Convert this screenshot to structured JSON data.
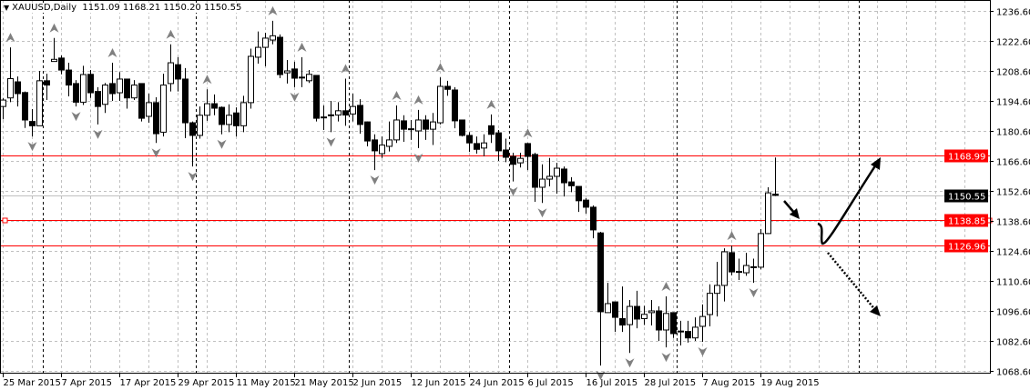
{
  "header": {
    "symbol": "XAUUSD,Daily",
    "ohlc": "1151.09 1168.21 1150.20 1150.55",
    "menu_icon": "triangle-down-icon"
  },
  "colors": {
    "background": "#ffffff",
    "candle_outline": "#000000",
    "bull_body": "#ffffff",
    "bear_body": "#000000",
    "grid": "#c0c0c0",
    "level_line": "#ff0000",
    "bid_line": "#c0c0c0",
    "label_red_bg": "#ff0000",
    "label_bid_bg": "#000000",
    "fractal": "#808080"
  },
  "chart_data": {
    "type": "candlestick",
    "symbol": "XAUUSD",
    "timeframe": "Daily",
    "ylim": [
      1065.0,
      1243.0
    ],
    "grid": true,
    "y_ticks": [
      "1236.60",
      "1222.60",
      "1208.60",
      "1194.60",
      "1180.60",
      "1166.60",
      "1152.60",
      "1138.60",
      "1124.60",
      "1110.60",
      "1096.60",
      "1082.60",
      "1068.60"
    ],
    "x_ticks": [
      {
        "label": "25 Mar 2015",
        "index": 0
      },
      {
        "label": "7 Apr 2015",
        "index": 8
      },
      {
        "label": "17 Apr 2015",
        "index": 16
      },
      {
        "label": "29 Apr 2015",
        "index": 24
      },
      {
        "label": "11 May 2015",
        "index": 32
      },
      {
        "label": "21 May 2015",
        "index": 40
      },
      {
        "label": "2 Jun 2015",
        "index": 48
      },
      {
        "label": "12 Jun 2015",
        "index": 56
      },
      {
        "label": "24 Jun 2015",
        "index": 64
      },
      {
        "label": "6 Jul 2015",
        "index": 72
      },
      {
        "label": "16 Jul 2015",
        "index": 80
      },
      {
        "label": "28 Jul 2015",
        "index": 88
      },
      {
        "label": "7 Aug 2015",
        "index": 96
      },
      {
        "label": "19 Aug 2015",
        "index": 104
      }
    ],
    "month_separators": [
      5,
      26,
      47,
      69,
      92
    ],
    "candles_ohlc": [
      [
        1192,
        1196,
        1186,
        1195
      ],
      [
        1196,
        1219.6,
        1194,
        1205
      ],
      [
        1203.5,
        1206,
        1192,
        1198
      ],
      [
        1198.5,
        1199,
        1182,
        1185.7
      ],
      [
        1185,
        1190.8,
        1178,
        1183
      ],
      [
        1183,
        1208.6,
        1183,
        1204
      ],
      [
        1204,
        1207.3,
        1195,
        1202
      ],
      [
        1213,
        1224,
        1213,
        1214
      ],
      [
        1214.6,
        1215.8,
        1207,
        1209
      ],
      [
        1209,
        1212.4,
        1196.7,
        1202
      ],
      [
        1202.7,
        1204.3,
        1192,
        1194
      ],
      [
        1194,
        1211,
        1192.7,
        1206.9
      ],
      [
        1207,
        1209,
        1196,
        1198.4
      ],
      [
        1199,
        1201,
        1183.6,
        1192
      ],
      [
        1193,
        1203,
        1189,
        1202
      ],
      [
        1202.7,
        1212.4,
        1194.6,
        1198
      ],
      [
        1198.4,
        1208,
        1194.6,
        1204.8
      ],
      [
        1204.8,
        1205,
        1191,
        1196
      ],
      [
        1196,
        1204.3,
        1195,
        1202
      ],
      [
        1202.7,
        1202.7,
        1185,
        1186.5
      ],
      [
        1187.4,
        1198,
        1184.4,
        1193.8
      ],
      [
        1193.8,
        1196.3,
        1175,
        1179.3
      ],
      [
        1180,
        1207.3,
        1178,
        1202
      ],
      [
        1202.7,
        1221,
        1199,
        1212.4
      ],
      [
        1211.5,
        1215,
        1199,
        1204.8
      ],
      [
        1204.8,
        1209.9,
        1177.2,
        1184.4
      ],
      [
        1184.4,
        1185,
        1164,
        1178.5
      ],
      [
        1178.5,
        1192,
        1177,
        1187.9
      ],
      [
        1187.9,
        1200,
        1185.3,
        1193.3
      ],
      [
        1193.3,
        1197.6,
        1187.9,
        1191.2
      ],
      [
        1191.6,
        1192,
        1179,
        1183.6
      ],
      [
        1183.6,
        1193,
        1180,
        1187.9
      ],
      [
        1189,
        1191.6,
        1178,
        1183
      ],
      [
        1183,
        1197,
        1180,
        1193.8
      ],
      [
        1193.8,
        1219,
        1191,
        1215.4
      ],
      [
        1215,
        1227,
        1212,
        1219.6
      ],
      [
        1219.6,
        1226.4,
        1210.7,
        1223.9
      ],
      [
        1223,
        1232,
        1221,
        1225
      ],
      [
        1224.3,
        1225.6,
        1205.2,
        1206.9
      ],
      [
        1207.7,
        1213.7,
        1202.7,
        1208.6
      ],
      [
        1209.5,
        1212.9,
        1201,
        1205.2
      ],
      [
        1205.6,
        1215,
        1201,
        1205.7
      ],
      [
        1204,
        1209,
        1203,
        1207
      ],
      [
        1206.5,
        1206.5,
        1185,
        1186.5
      ],
      [
        1187,
        1192.5,
        1181,
        1187.1
      ],
      [
        1188,
        1194.6,
        1180,
        1188.1
      ],
      [
        1188,
        1194,
        1185,
        1190
      ],
      [
        1190,
        1205,
        1183,
        1188
      ],
      [
        1188.5,
        1198,
        1185,
        1192
      ],
      [
        1192.5,
        1195.4,
        1179.3,
        1183.6
      ],
      [
        1184.8,
        1185,
        1173.4,
        1175.9
      ],
      [
        1176.4,
        1179,
        1162.3,
        1171.3
      ],
      [
        1170,
        1178,
        1168,
        1174
      ],
      [
        1173.4,
        1185,
        1171,
        1176.4
      ],
      [
        1176.4,
        1192.5,
        1175,
        1185.7
      ],
      [
        1185.3,
        1187.9,
        1175.5,
        1181.4
      ],
      [
        1181.4,
        1185.7,
        1176.4,
        1181.6
      ],
      [
        1180.6,
        1190.4,
        1172.6,
        1185.7
      ],
      [
        1185.7,
        1187.9,
        1176.4,
        1181.4
      ],
      [
        1181.4,
        1189,
        1174,
        1184.8
      ],
      [
        1184.4,
        1205.6,
        1183.6,
        1201.4
      ],
      [
        1201.4,
        1204,
        1197,
        1200
      ],
      [
        1199.7,
        1201,
        1181.8,
        1185.3
      ],
      [
        1185.7,
        1185.7,
        1178,
        1178.5
      ],
      [
        1178.5,
        1180,
        1170.8,
        1175
      ],
      [
        1174.7,
        1178,
        1170,
        1172
      ],
      [
        1172.6,
        1179,
        1168.7,
        1175
      ],
      [
        1183,
        1188.3,
        1175,
        1179
      ],
      [
        1179.7,
        1181,
        1166.6,
        1171.3
      ],
      [
        1171.7,
        1177,
        1166,
        1168.3
      ],
      [
        1168.7,
        1170.4,
        1157,
        1165
      ],
      [
        1165.7,
        1170.4,
        1163.5,
        1167.8
      ],
      [
        1174.7,
        1175,
        1162.3,
        1168.7
      ],
      [
        1169.6,
        1170.4,
        1147.5,
        1154.3
      ],
      [
        1154.3,
        1165,
        1147,
        1158.1
      ],
      [
        1158.1,
        1168,
        1154.7,
        1159.4
      ],
      [
        1159.4,
        1165.7,
        1151.3,
        1163.2
      ],
      [
        1162.8,
        1164,
        1150,
        1156.4
      ],
      [
        1156.8,
        1159,
        1152,
        1155
      ],
      [
        1154.7,
        1154.7,
        1142.8,
        1148
      ],
      [
        1148.3,
        1149.2,
        1142,
        1145
      ],
      [
        1145,
        1145.8,
        1130.5,
        1134.4
      ],
      [
        1133,
        1133.5,
        1071.1,
        1096.2
      ],
      [
        1095.8,
        1109.7,
        1095.8,
        1100
      ],
      [
        1100.8,
        1100.8,
        1086.8,
        1093.6
      ],
      [
        1093,
        1108,
        1086.8,
        1090
      ],
      [
        1090.2,
        1101.7,
        1077,
        1098.7
      ],
      [
        1098.7,
        1106,
        1088.5,
        1092.8
      ],
      [
        1093,
        1099,
        1090,
        1095
      ],
      [
        1095.8,
        1101.7,
        1089.8,
        1096.6
      ],
      [
        1096.6,
        1098.7,
        1082.6,
        1087.7
      ],
      [
        1087.7,
        1103.4,
        1079.6,
        1095.4
      ],
      [
        1095.8,
        1095.8,
        1084,
        1086
      ],
      [
        1087,
        1092,
        1080.5,
        1087.2
      ],
      [
        1087,
        1092,
        1081.8,
        1084
      ],
      [
        1084,
        1093.6,
        1082.6,
        1089
      ],
      [
        1089.4,
        1099.6,
        1082.2,
        1094
      ],
      [
        1094.9,
        1109,
        1089.4,
        1104.8
      ],
      [
        1104.8,
        1119.5,
        1094,
        1108.5
      ],
      [
        1108.5,
        1125.8,
        1101,
        1124.2
      ],
      [
        1123.8,
        1127.1,
        1113.2,
        1114.8
      ],
      [
        1115,
        1121,
        1111,
        1114.6
      ],
      [
        1114.4,
        1123.7,
        1113,
        1117.8
      ],
      [
        1117,
        1121,
        1109.7,
        1117.2
      ],
      [
        1117,
        1134.8,
        1116,
        1132.7
      ],
      [
        1132.7,
        1154.3,
        1132.5,
        1151.7
      ],
      [
        1151.09,
        1168.21,
        1150.2,
        1150.55
      ]
    ],
    "fractals_up": [
      1,
      7,
      15,
      23,
      28,
      37,
      41,
      47,
      54,
      57,
      60,
      67,
      72,
      91,
      100
    ],
    "fractals_down": [
      4,
      10,
      13,
      21,
      26,
      30,
      40,
      45,
      51,
      57,
      70,
      74,
      82,
      86,
      91,
      96,
      103
    ],
    "levels": [
      {
        "price": 1168.99,
        "label": "1168.99",
        "color": "#ff0000"
      },
      {
        "price": 1138.85,
        "label": "1138.85",
        "color": "#ff0000",
        "selected": true
      },
      {
        "price": 1126.96,
        "label": "1126.96",
        "color": "#ff0000"
      }
    ],
    "bid": {
      "price": 1150.55,
      "label": "1150.55"
    }
  }
}
